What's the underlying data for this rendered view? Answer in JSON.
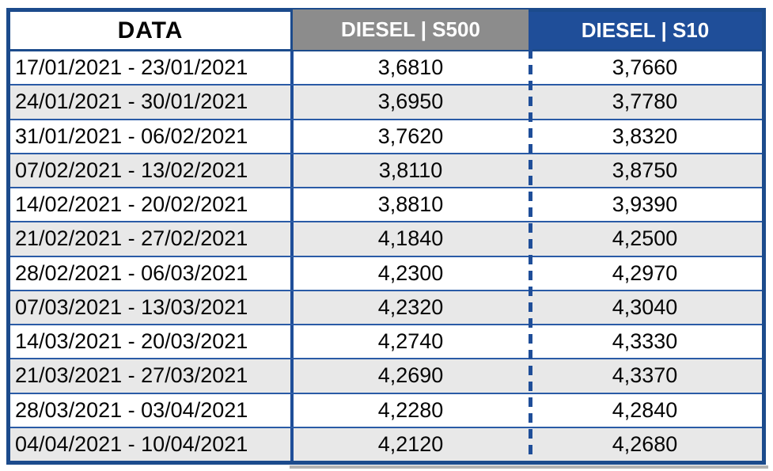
{
  "colors": {
    "header_blue": "#1F4E99",
    "header_gray": "#8C8C8C",
    "border_navy": "#1C4B8C",
    "grid_blue": "#2A5BA6",
    "row_alt": "#E8E8E8",
    "text_black": "#050505",
    "shadow_gray": "#B3B3B3"
  },
  "table": {
    "header": {
      "data": "DATA",
      "s500": "DIESEL | S500",
      "s10": "DIESEL | S10"
    },
    "rows": [
      {
        "date": "17/01/2021 - 23/01/2021",
        "s500": "3,6810",
        "s10": "3,7660"
      },
      {
        "date": "24/01/2021 - 30/01/2021",
        "s500": "3,6950",
        "s10": "3,7780"
      },
      {
        "date": "31/01/2021 - 06/02/2021",
        "s500": "3,7620",
        "s10": "3,8320"
      },
      {
        "date": "07/02/2021 - 13/02/2021",
        "s500": "3,8110",
        "s10": "3,8750"
      },
      {
        "date": "14/02/2021 - 20/02/2021",
        "s500": "3,8810",
        "s10": "3,9390"
      },
      {
        "date": "21/02/2021 - 27/02/2021",
        "s500": "4,1840",
        "s10": "4,2500"
      },
      {
        "date": "28/02/2021 - 06/03/2021",
        "s500": "4,2300",
        "s10": "4,2970"
      },
      {
        "date": "07/03/2021 - 13/03/2021",
        "s500": "4,2320",
        "s10": "4,3040"
      },
      {
        "date": "14/03/2021 - 20/03/2021",
        "s500": "4,2740",
        "s10": "4,3330"
      },
      {
        "date": "21/03/2021 - 27/03/2021",
        "s500": "4,2690",
        "s10": "4,3370"
      },
      {
        "date": "28/03/2021 - 03/04/2021",
        "s500": "4,2280",
        "s10": "4,2840"
      },
      {
        "date": "04/04/2021 - 10/04/2021",
        "s500": "4,2120",
        "s10": "4,2680"
      }
    ]
  },
  "chart_data": {
    "type": "table",
    "columns": [
      "DATA",
      "DIESEL | S500",
      "DIESEL | S10"
    ],
    "rows": [
      [
        "17/01/2021 - 23/01/2021",
        "3,6810",
        "3,7660"
      ],
      [
        "24/01/2021 - 30/01/2021",
        "3,6950",
        "3,7780"
      ],
      [
        "31/01/2021 - 06/02/2021",
        "3,7620",
        "3,8320"
      ],
      [
        "07/02/2021 - 13/02/2021",
        "3,8110",
        "3,8750"
      ],
      [
        "14/02/2021 - 20/02/2021",
        "3,8810",
        "3,9390"
      ],
      [
        "21/02/2021 - 27/02/2021",
        "4,1840",
        "4,2500"
      ],
      [
        "28/02/2021 - 06/03/2021",
        "4,2300",
        "4,2970"
      ],
      [
        "07/03/2021 - 13/03/2021",
        "4,2320",
        "4,3040"
      ],
      [
        "14/03/2021 - 20/03/2021",
        "4,2740",
        "4,3330"
      ],
      [
        "21/03/2021 - 27/03/2021",
        "4,2690",
        "4,3370"
      ],
      [
        "28/03/2021 - 03/04/2021",
        "4,2280",
        "4,2840"
      ],
      [
        "04/04/2021 - 10/04/2021",
        "4,2120",
        "4,2680"
      ]
    ],
    "values_s500": [
      3.681,
      3.695,
      3.762,
      3.811,
      3.881,
      4.184,
      4.23,
      4.232,
      4.274,
      4.269,
      4.228,
      4.212
    ],
    "values_s10": [
      3.766,
      3.778,
      3.832,
      3.875,
      3.939,
      4.25,
      4.297,
      4.304,
      4.333,
      4.337,
      4.284,
      4.268
    ]
  }
}
